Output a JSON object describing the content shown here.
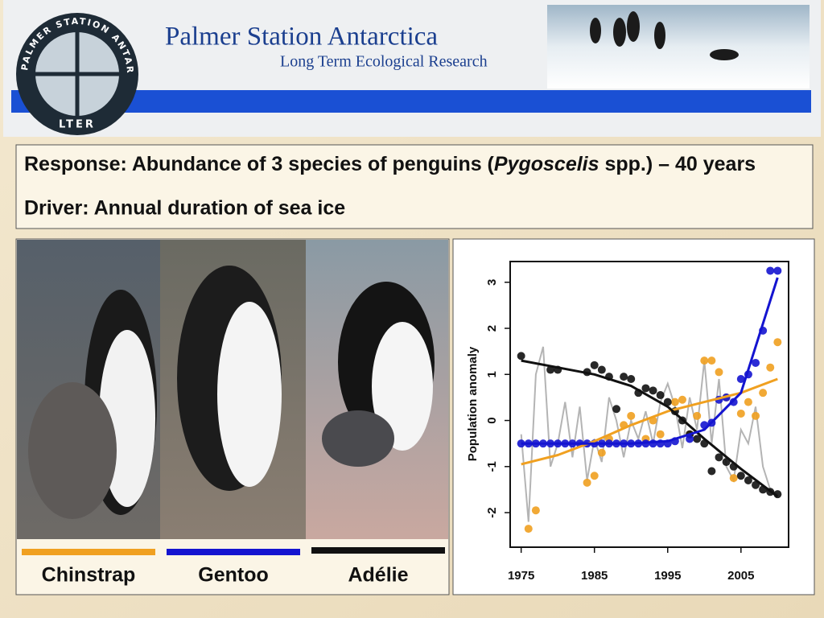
{
  "header": {
    "title": "Palmer Station Antarctica",
    "subtitle": "Long Term Ecological Research",
    "logo_ring": "PALMER STATION ANTARCTICA",
    "logo_mark": "LTER"
  },
  "response": {
    "prefix": "Response: Abundance of 3 species of penguins (",
    "italic": "Pygoscelis",
    "suffix": " spp.) – 40 years"
  },
  "driver": "Driver: Annual duration of sea ice",
  "chart_data": {
    "type": "scatter",
    "ylabel": "Population anomaly",
    "x": [
      1975,
      1976,
      1977,
      1978,
      1979,
      1980,
      1981,
      1982,
      1983,
      1984,
      1985,
      1986,
      1987,
      1988,
      1989,
      1990,
      1991,
      1992,
      1993,
      1994,
      1995,
      1996,
      1997,
      1998,
      1999,
      2000,
      2001,
      2002,
      2003,
      2004,
      2005,
      2006,
      2007,
      2008,
      2009,
      2010
    ],
    "trend_x": [
      1975,
      1980,
      1985,
      1990,
      1995,
      2000,
      2005,
      2010
    ],
    "xlim": [
      1973.5,
      2011.5
    ],
    "xticks": [
      1975,
      1985,
      1995,
      2005
    ],
    "ylim": [
      -2.75,
      3.45
    ],
    "yticks": [
      -2,
      -1,
      0,
      1,
      2,
      3
    ],
    "series": [
      {
        "name": "Chinstrap",
        "color": "#f0a020",
        "values": [
          null,
          -2.35,
          -1.95,
          null,
          null,
          null,
          null,
          null,
          null,
          -1.35,
          -1.2,
          -0.7,
          -0.4,
          null,
          -0.1,
          0.1,
          null,
          -0.4,
          0.0,
          -0.3,
          null,
          0.4,
          0.45,
          -0.3,
          0.1,
          1.3,
          1.3,
          1.05,
          0.5,
          -1.25,
          0.15,
          0.4,
          0.1,
          0.6,
          1.15,
          1.7
        ],
        "trend": [
          -0.95,
          -0.75,
          -0.45,
          -0.1,
          0.2,
          0.4,
          0.6,
          0.9
        ]
      },
      {
        "name": "Gentoo",
        "color": "#1414d0",
        "values": [
          -0.5,
          -0.5,
          -0.5,
          -0.5,
          -0.5,
          -0.5,
          -0.5,
          -0.5,
          -0.5,
          -0.5,
          -0.5,
          -0.5,
          -0.5,
          -0.5,
          -0.5,
          -0.5,
          -0.5,
          -0.5,
          -0.5,
          -0.5,
          -0.5,
          -0.45,
          null,
          -0.4,
          null,
          -0.1,
          -0.05,
          0.45,
          0.5,
          0.4,
          0.9,
          1.0,
          1.25,
          1.95,
          3.25,
          3.25
        ],
        "trend": [
          -0.5,
          -0.5,
          -0.5,
          -0.5,
          -0.45,
          -0.2,
          0.6,
          3.1
        ]
      },
      {
        "name": "Adélie",
        "color": "#111111",
        "values": [
          1.4,
          null,
          null,
          null,
          1.1,
          1.1,
          null,
          null,
          null,
          1.05,
          1.2,
          1.1,
          0.95,
          0.25,
          0.95,
          0.9,
          0.6,
          0.7,
          0.65,
          0.55,
          0.4,
          0.2,
          0.0,
          -0.3,
          -0.4,
          -0.5,
          -1.1,
          -0.8,
          -0.9,
          -1.0,
          -1.2,
          -1.3,
          -1.4,
          -1.5,
          -1.55,
          -1.6
        ],
        "trend": [
          1.3,
          1.15,
          1.0,
          0.75,
          0.3,
          -0.4,
          -1.05,
          -1.65
        ]
      },
      {
        "color": "#b4b4b4",
        "values": [
          -0.3,
          -2.2,
          1.0,
          1.6,
          -1.0,
          -0.5,
          0.4,
          -0.8,
          0.3,
          -1.3,
          -0.4,
          -0.9,
          0.5,
          0.0,
          -0.8,
          0.0,
          -0.4,
          0.2,
          -0.5,
          0.4,
          0.8,
          0.3,
          -0.6,
          0.5,
          -0.2,
          1.3,
          -0.5,
          0.9,
          -1.0,
          -1.3,
          -0.2,
          -0.5,
          0.3,
          -1.0,
          -1.5,
          -1.6
        ]
      }
    ]
  }
}
